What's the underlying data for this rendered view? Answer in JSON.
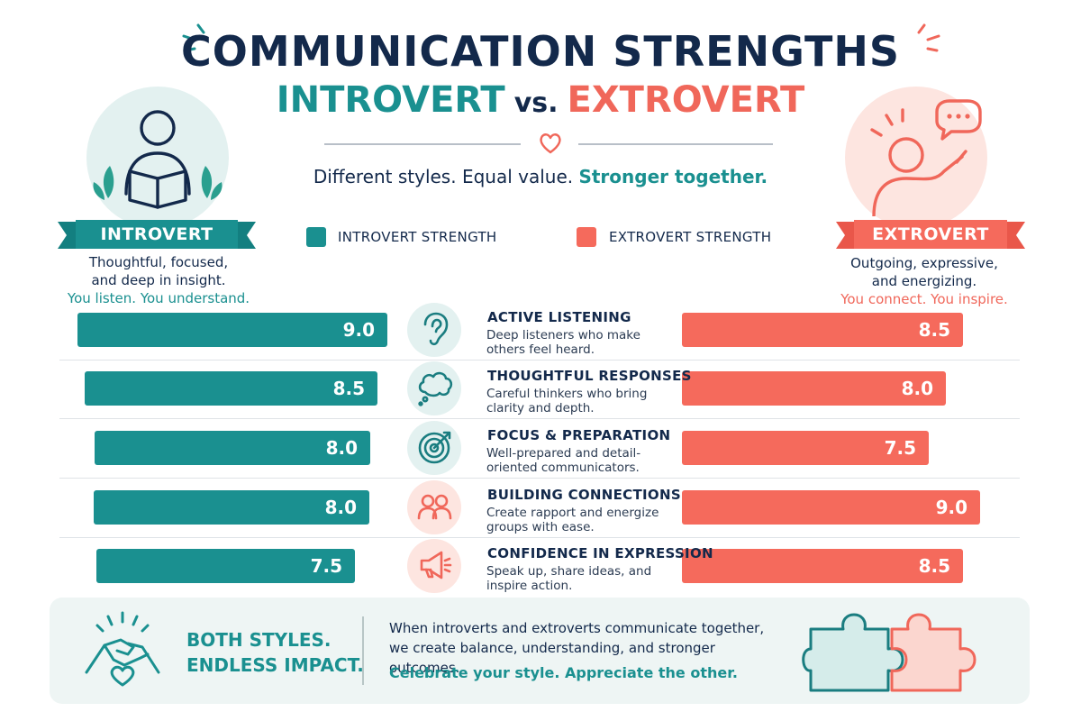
{
  "header": {
    "title": "COMMUNICATION STRENGTHS",
    "subtitle_intro": "INTROVERT",
    "subtitle_vs": "vs.",
    "subtitle_extro": "EXTROVERT",
    "tagline_plain": "Different styles. Equal value.",
    "tagline_strong": "Stronger together."
  },
  "introvert_profile": {
    "label": "INTROVERT",
    "description_line1": "Thoughtful, focused,",
    "description_line2": "and deep in insight.",
    "accent": "You listen. You understand."
  },
  "extrovert_profile": {
    "label": "EXTROVERT",
    "description_line1": "Outgoing, expressive,",
    "description_line2": "and energizing.",
    "accent": "You connect. You inspire."
  },
  "legend": {
    "introvert": "INTROVERT STRENGTH",
    "extrovert": "EXTROVERT STRENGTH"
  },
  "colors": {
    "introvert": "#1a9090",
    "extrovert": "#f56a5c",
    "navy": "#13294b"
  },
  "chart_data": {
    "type": "bar",
    "orientation": "horizontal-diverging",
    "categories": [
      "ACTIVE LISTENING",
      "THOUGHTFUL RESPONSES",
      "FOCUS & PREPARATION",
      "BUILDING CONNECTIONS",
      "CONFIDENCE IN EXPRESSION"
    ],
    "descriptions": [
      [
        "Deep listeners who make",
        "others feel heard."
      ],
      [
        "Careful thinkers who bring",
        "clarity and depth."
      ],
      [
        "Well-prepared and detail-",
        "oriented communicators."
      ],
      [
        "Create rapport and energize",
        "groups with ease."
      ],
      [
        "Speak up, share ideas, and",
        "inspire action."
      ]
    ],
    "icons": [
      "ear-icon",
      "thought-cloud-icon",
      "target-icon",
      "people-icon",
      "megaphone-icon"
    ],
    "series": [
      {
        "name": "INTROVERT STRENGTH",
        "values": [
          9.0,
          8.5,
          8.0,
          8.0,
          7.5
        ]
      },
      {
        "name": "EXTROVERT STRENGTH",
        "values": [
          8.5,
          8.0,
          7.5,
          9.0,
          8.5
        ]
      }
    ],
    "value_labels": {
      "introvert": [
        "9.0",
        "8.5",
        "8.0",
        "8.0",
        "7.5"
      ],
      "extrovert": [
        "8.5",
        "8.0",
        "7.5",
        "9.0",
        "8.5"
      ]
    },
    "legend_position": "top",
    "grid": false
  },
  "footer": {
    "headline_line1": "BOTH STYLES.",
    "headline_line2": "ENDLESS IMPACT.",
    "body": "When introverts and extroverts communicate together, we create balance, understanding, and stronger outcomes.",
    "cta": "Celebrate your style. Appreciate the other."
  }
}
